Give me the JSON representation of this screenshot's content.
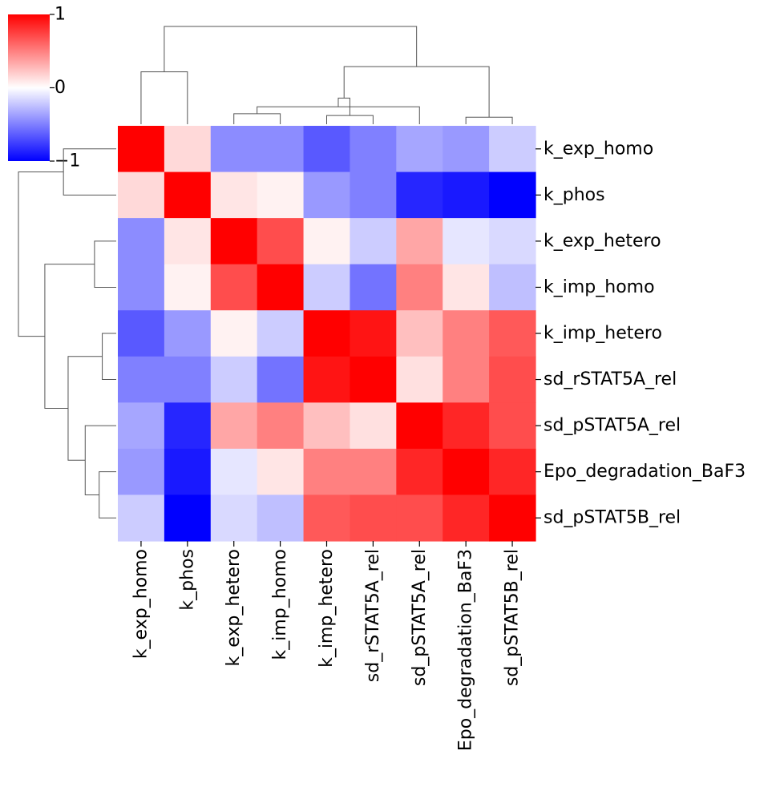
{
  "chart_data": {
    "type": "heatmap",
    "title": "",
    "row_labels": [
      "k_exp_homo",
      "k_phos",
      "k_exp_hetero",
      "k_imp_homo",
      "k_imp_hetero",
      "sd_rSTAT5A_rel",
      "sd_pSTAT5A_rel",
      "Epo_degradation_BaF3",
      "sd_pSTAT5B_rel"
    ],
    "col_labels": [
      "k_exp_homo",
      "k_phos",
      "k_exp_hetero",
      "k_imp_homo",
      "k_imp_hetero",
      "sd_rSTAT5A_rel",
      "sd_pSTAT5A_rel",
      "Epo_degradation_BaF3",
      "sd_pSTAT5B_rel"
    ],
    "values": [
      [
        1.0,
        0.15,
        -0.45,
        -0.45,
        -0.65,
        -0.5,
        -0.35,
        -0.4,
        -0.2
      ],
      [
        0.15,
        1.0,
        0.1,
        0.05,
        -0.4,
        -0.5,
        -0.85,
        -0.9,
        -1.0
      ],
      [
        -0.45,
        0.1,
        1.0,
        0.7,
        0.05,
        -0.2,
        0.35,
        -0.1,
        -0.15
      ],
      [
        -0.45,
        0.05,
        0.7,
        1.0,
        -0.2,
        -0.55,
        0.5,
        0.1,
        -0.25
      ],
      [
        -0.65,
        -0.4,
        0.05,
        -0.2,
        1.0,
        0.92,
        0.25,
        0.5,
        0.65
      ],
      [
        -0.5,
        -0.5,
        -0.2,
        -0.55,
        0.92,
        1.0,
        0.12,
        0.5,
        0.7
      ],
      [
        -0.35,
        -0.85,
        0.35,
        0.5,
        0.25,
        0.12,
        1.0,
        0.85,
        0.7
      ],
      [
        -0.4,
        -0.9,
        -0.1,
        0.1,
        0.5,
        0.5,
        0.85,
        1.0,
        0.85
      ],
      [
        -0.2,
        -1.0,
        -0.15,
        -0.25,
        0.65,
        0.7,
        0.7,
        0.85,
        1.0
      ]
    ],
    "colormap": {
      "low": "#0000ff",
      "mid": "#ffffff",
      "high": "#ff0000"
    },
    "colorbar": {
      "min": -1,
      "max": 1,
      "ticks": [
        1,
        0,
        -1
      ],
      "tick_labels": [
        "1",
        "0",
        "−1"
      ]
    },
    "col_dendrogram_merges": [
      [
        2,
        3,
        0.3
      ],
      [
        7,
        8,
        0.2
      ],
      [
        6,
        9,
        0.5
      ],
      [
        4,
        5,
        0.25
      ],
      [
        11,
        12,
        0.75
      ],
      [
        10,
        13,
        1.65
      ],
      [
        0,
        1,
        1.5
      ],
      [
        15,
        14,
        2.8
      ]
    ],
    "row_dendrogram_merges": [
      [
        0,
        1,
        1.7
      ],
      [
        2,
        3,
        0.7
      ],
      [
        4,
        5,
        0.45
      ],
      [
        7,
        8,
        0.55
      ],
      [
        6,
        12,
        1.0
      ],
      [
        11,
        13,
        1.55
      ],
      [
        10,
        14,
        2.3
      ],
      [
        9,
        15,
        3.15
      ]
    ]
  }
}
